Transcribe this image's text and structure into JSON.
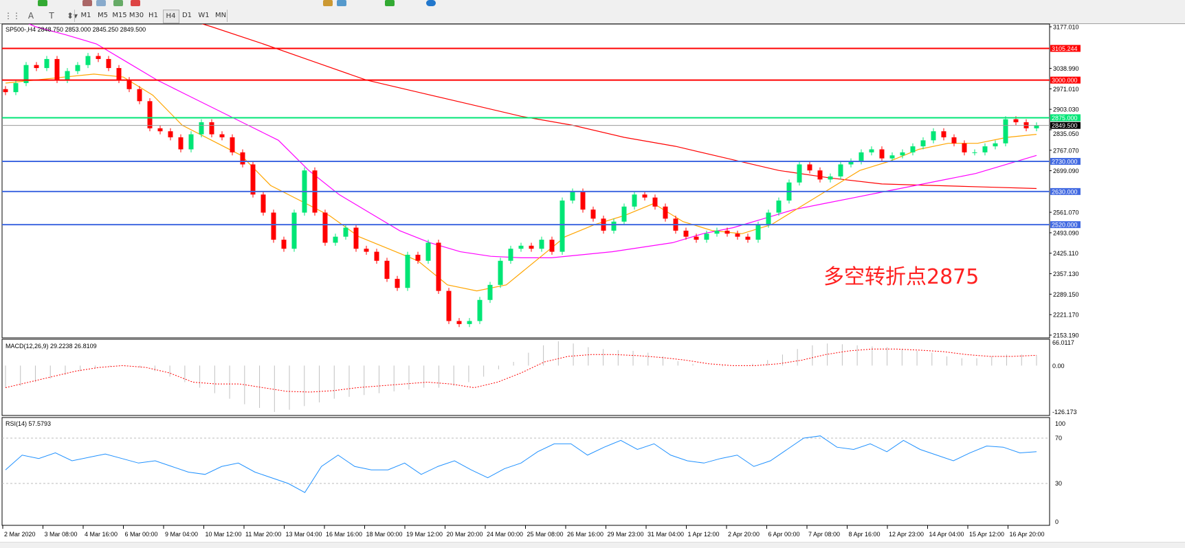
{
  "toolbar": {
    "tools": [
      {
        "name": "crosshair-grid-icon",
        "glyph": "⋮⋮"
      },
      {
        "name": "text-icon",
        "glyph": "A"
      },
      {
        "name": "text-label-icon",
        "glyph": "T"
      },
      {
        "name": "arrows-icon",
        "glyph": "⬍▾"
      }
    ],
    "timeframes": [
      "M1",
      "M5",
      "M15",
      "M30",
      "H1",
      "H4",
      "D1",
      "W1",
      "MN"
    ],
    "active_timeframe": "H4"
  },
  "chart": {
    "symbol_info": "SP500-,H4  2848.750 2853.000 2845.250 2849.500",
    "annotation": "多空转折点2875",
    "colors": {
      "up": "#00e676",
      "down": "#ff0000",
      "ma_fast": "#ffa500",
      "ma_mid": "#ff00ff",
      "ma_slow": "#ff0000",
      "resistance": "#ff0000",
      "pivot": "#00e676",
      "support": "#4169e1",
      "macd_hist": "#c0c0c0",
      "macd_signal": "#ff0000",
      "rsi": "#1e90ff"
    }
  },
  "chart_data": {
    "type": "candlestick",
    "ylim": [
      2153.19,
      3177.01
    ],
    "price_ticks": [
      "3177.010",
      "3038.990",
      "2971.010",
      "2903.030",
      "2835.050",
      "2767.070",
      "2699.090",
      "2561.070",
      "2493.090",
      "2425.110",
      "2357.130",
      "2289.150",
      "2221.170",
      "2153.190"
    ],
    "time_ticks": [
      "2 Mar 2020",
      "3 Mar 08:00",
      "4 Mar 16:00",
      "6 Mar 00:00",
      "9 Mar 04:00",
      "10 Mar 12:00",
      "11 Mar 20:00",
      "13 Mar 04:00",
      "16 Mar 16:00",
      "18 Mar 00:00",
      "19 Mar 12:00",
      "20 Mar 20:00",
      "24 Mar 00:00",
      "25 Mar 08:00",
      "26 Mar 16:00",
      "29 Mar 23:00",
      "31 Mar 04:00",
      "1 Apr 12:00",
      "2 Apr 20:00",
      "6 Apr 00:00",
      "7 Apr 08:00",
      "8 Apr 16:00",
      "12 Apr 23:00",
      "14 Apr 04:00",
      "15 Apr 12:00",
      "16 Apr 20:00"
    ],
    "closes": [
      2960,
      2990,
      3050,
      3040,
      3070,
      3000,
      3030,
      3050,
      3080,
      3070,
      3040,
      3000,
      2970,
      2930,
      2840,
      2830,
      2810,
      2770,
      2820,
      2860,
      2820,
      2810,
      2760,
      2720,
      2620,
      2560,
      2470,
      2440,
      2560,
      2700,
      2560,
      2460,
      2480,
      2510,
      2440,
      2430,
      2400,
      2340,
      2310,
      2420,
      2400,
      2460,
      2300,
      2200,
      2190,
      2200,
      2270,
      2320,
      2400,
      2440,
      2450,
      2440,
      2470,
      2430,
      2600,
      2630,
      2570,
      2540,
      2500,
      2530,
      2580,
      2620,
      2610,
      2580,
      2540,
      2500,
      2480,
      2470,
      2490,
      2500,
      2490,
      2480,
      2470,
      2520,
      2560,
      2600,
      2660,
      2720,
      2700,
      2670,
      2680,
      2720,
      2730,
      2760,
      2770,
      2740,
      2750,
      2760,
      2780,
      2800,
      2830,
      2810,
      2790,
      2760,
      2760,
      2780,
      2790,
      2870,
      2860,
      2840,
      2849.5
    ],
    "ma_fast": [
      2990,
      3000,
      3010,
      3020,
      3010,
      2950,
      2850,
      2800,
      2750,
      2650,
      2600,
      2550,
      2480,
      2440,
      2400,
      2320,
      2300,
      2320,
      2400,
      2480,
      2520,
      2550,
      2590,
      2530,
      2500,
      2490,
      2520,
      2580,
      2640,
      2700,
      2730,
      2770,
      2790,
      2790,
      2810,
      2820
    ],
    "ma_mid": [
      3220,
      3177,
      3150,
      3120,
      3060,
      3000,
      2950,
      2900,
      2850,
      2800,
      2700,
      2620,
      2560,
      2500,
      2460,
      2430,
      2415,
      2410,
      2410,
      2420,
      2430,
      2445,
      2460,
      2490,
      2510,
      2540,
      2570,
      2590,
      2610,
      2630,
      2650,
      2670,
      2690,
      2720,
      2750
    ],
    "ma_slow": [
      3380,
      3330,
      3280,
      3230,
      3177,
      3120,
      3060,
      3000,
      2960,
      2920,
      2880,
      2850,
      2810,
      2780,
      2740,
      2700,
      2675,
      2655,
      2650,
      2645,
      2640
    ],
    "levels": [
      {
        "value": "3105.244",
        "kind": "resistance"
      },
      {
        "value": "3000.000",
        "kind": "resistance"
      },
      {
        "value": "2875.000",
        "kind": "pivot"
      },
      {
        "value": "2849.500",
        "kind": "current"
      },
      {
        "value": "2730.000",
        "kind": "support"
      },
      {
        "value": "2630.000",
        "kind": "support"
      },
      {
        "value": "2520.000",
        "kind": "support"
      }
    ],
    "macd": {
      "label": "MACD(12,26,9) 29.2238 26.8109",
      "ylim": [
        -126.173,
        66.0117
      ],
      "ticks": [
        "66.0117",
        "0.00",
        "-126.173"
      ],
      "histogram": [
        -60,
        -55,
        -45,
        -35,
        -25,
        -15,
        -8,
        -3,
        -2,
        -5,
        -15,
        -30,
        -45,
        -60,
        -75,
        -90,
        -105,
        -115,
        -126,
        -120,
        -110,
        -100,
        -90,
        -85,
        -80,
        -75,
        -70,
        -65,
        -60,
        -60,
        -55,
        -45,
        -30,
        -10,
        10,
        35,
        55,
        66,
        60,
        50,
        45,
        42,
        40,
        35,
        25,
        12,
        5,
        0,
        -2,
        0,
        5,
        15,
        30,
        45,
        55,
        60,
        58,
        55,
        52,
        50,
        45,
        40,
        35,
        25,
        20,
        20,
        25,
        30,
        30,
        28
      ],
      "signal": [
        -60,
        -45,
        -30,
        -15,
        -5,
        0,
        -5,
        -20,
        -45,
        -50,
        -50,
        -60,
        -70,
        -72,
        -68,
        -60,
        -55,
        -50,
        -45,
        -50,
        -60,
        -45,
        -20,
        10,
        25,
        30,
        30,
        27,
        22,
        15,
        5,
        0,
        0,
        5,
        15,
        30,
        40,
        45,
        45,
        42,
        38,
        30,
        25,
        25,
        28
      ]
    },
    "rsi": {
      "label": "RSI(14) 57.5793",
      "levels": [
        70,
        30
      ],
      "ticks": [
        "100",
        "70",
        "30",
        "0"
      ],
      "values": [
        42,
        55,
        52,
        57,
        50,
        53,
        56,
        52,
        48,
        50,
        45,
        40,
        38,
        45,
        48,
        40,
        35,
        30,
        22,
        45,
        55,
        45,
        42,
        42,
        48,
        38,
        45,
        50,
        42,
        35,
        43,
        48,
        58,
        65,
        65,
        55,
        62,
        68,
        60,
        65,
        55,
        50,
        48,
        52,
        55,
        45,
        50,
        60,
        70,
        72,
        62,
        60,
        65,
        58,
        68,
        60,
        55,
        50,
        57,
        63,
        62,
        57,
        58
      ]
    }
  }
}
